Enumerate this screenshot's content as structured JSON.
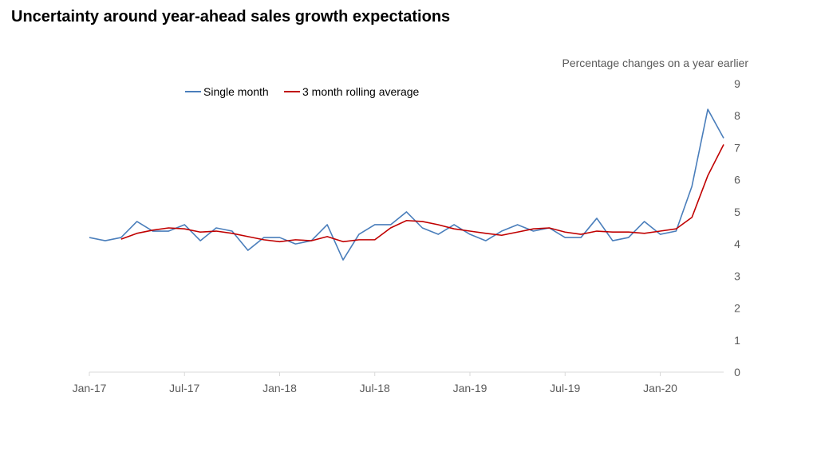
{
  "page": {
    "title": "Uncertainty around year-ahead sales growth expectations",
    "subtitle": "Percentage changes on a year earlier"
  },
  "chart_data": {
    "type": "line",
    "title": "Uncertainty around year-ahead sales growth expectations",
    "ylabel": "Percentage changes on a year earlier",
    "xlabel": "",
    "ylim": [
      0,
      9
    ],
    "y_ticks": [
      0,
      1,
      2,
      3,
      4,
      5,
      6,
      7,
      8,
      9
    ],
    "y_axis_side": "right",
    "x_tick_labels": [
      "Jan-17",
      "Jul-17",
      "Jan-18",
      "Jul-18",
      "Jan-19",
      "Jul-19",
      "Jan-20"
    ],
    "x_tick_index": [
      0,
      6,
      12,
      18,
      24,
      30,
      36
    ],
    "x": [
      "Jan-17",
      "Feb-17",
      "Mar-17",
      "Apr-17",
      "May-17",
      "Jun-17",
      "Jul-17",
      "Aug-17",
      "Sep-17",
      "Oct-17",
      "Nov-17",
      "Dec-17",
      "Jan-18",
      "Feb-18",
      "Mar-18",
      "Apr-18",
      "May-18",
      "Jun-18",
      "Jul-18",
      "Aug-18",
      "Sep-18",
      "Oct-18",
      "Nov-18",
      "Dec-18",
      "Jan-19",
      "Feb-19",
      "Mar-19",
      "Apr-19",
      "May-19",
      "Jun-19",
      "Jul-19",
      "Aug-19",
      "Sep-19",
      "Oct-19",
      "Nov-19",
      "Dec-19",
      "Jan-20",
      "Feb-20",
      "Mar-20",
      "Apr-20",
      "May-20"
    ],
    "legend_position": "top-left",
    "series": [
      {
        "name": "Single month",
        "color": "#4a7ebb",
        "values": [
          4.2,
          4.1,
          4.2,
          4.7,
          4.4,
          4.4,
          4.6,
          4.1,
          4.5,
          4.4,
          3.8,
          4.2,
          4.2,
          4.0,
          4.1,
          4.6,
          3.5,
          4.3,
          4.6,
          4.6,
          5.0,
          4.5,
          4.3,
          4.6,
          4.3,
          4.1,
          4.4,
          4.6,
          4.4,
          4.5,
          4.2,
          4.2,
          4.8,
          4.1,
          4.2,
          4.7,
          4.3,
          4.4,
          5.8,
          8.2,
          7.3
        ]
      },
      {
        "name": "3 month rolling average",
        "color": "#c00000",
        "values": [
          null,
          null,
          4.15,
          4.33,
          4.43,
          4.5,
          4.47,
          4.37,
          4.4,
          4.33,
          4.23,
          4.13,
          4.07,
          4.13,
          4.1,
          4.23,
          4.07,
          4.13,
          4.13,
          4.5,
          4.73,
          4.7,
          4.6,
          4.47,
          4.4,
          4.33,
          4.27,
          4.37,
          4.47,
          4.5,
          4.37,
          4.3,
          4.4,
          4.37,
          4.37,
          4.33,
          4.4,
          4.47,
          4.83,
          6.13,
          7.1
        ]
      }
    ]
  }
}
